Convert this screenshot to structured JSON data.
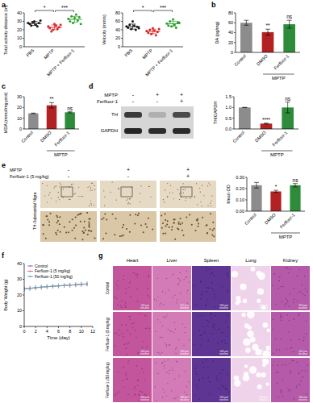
{
  "panel_labels": [
    "a",
    "b",
    "c",
    "d",
    "e",
    "f",
    "g"
  ],
  "chart_data": [
    {
      "type": "dot",
      "y_label": "Total activity distance (m)",
      "categories": [
        "PBS",
        "MPTP",
        "MPTP + Ferfluor-1"
      ],
      "colors": [
        "#1a1a1a",
        "#d62728",
        "#2ca02c"
      ],
      "points": [
        [
          28,
          27,
          25,
          29,
          30,
          26,
          24,
          28,
          31
        ],
        [
          24,
          22,
          18,
          20,
          27,
          25,
          21,
          23,
          26
        ],
        [
          33,
          30,
          36,
          28,
          34,
          38,
          31,
          35,
          27
        ]
      ],
      "means": [
        27.5,
        22.9,
        32.4
      ],
      "errors": [
        2.3,
        2.8,
        3.5
      ],
      "ylim": [
        0,
        40
      ],
      "yticks": [
        0,
        10,
        20,
        30,
        40
      ],
      "annotations": [
        {
          "from": "PBS",
          "to": "MPTP",
          "text": "*"
        },
        {
          "from": "MPTP",
          "to": "MPTP + Ferfluor-1",
          "text": "***"
        }
      ]
    },
    {
      "type": "dot",
      "y_label": "Velocity (mm/s)",
      "categories": [
        "PBS",
        "MPTP",
        "MPTP + Ferfluor-1"
      ],
      "colors": [
        "#1a1a1a",
        "#d62728",
        "#2ca02c"
      ],
      "points": [
        [
          48,
          45,
          52,
          42,
          60,
          50,
          40,
          47,
          44
        ],
        [
          37,
          33,
          40,
          30,
          44,
          38,
          27,
          35,
          42
        ],
        [
          55,
          50,
          60,
          48,
          65,
          52,
          45,
          58,
          57
        ]
      ],
      "means": [
        47.6,
        36.2,
        54.4
      ],
      "errors": [
        6,
        5.3,
        6.1
      ],
      "ylim": [
        0,
        80
      ],
      "yticks": [
        0,
        20,
        40,
        60,
        80
      ],
      "annotations": [
        {
          "from": "PBS",
          "to": "MPTP",
          "text": "*"
        },
        {
          "from": "MPTP",
          "to": "MPTP + Ferfluor-1",
          "text": "***"
        }
      ]
    },
    {
      "type": "bar",
      "y_label": "DA (pg/mg)",
      "categories": [
        "Control",
        "DMSO",
        "Ferfluor-1"
      ],
      "colors": [
        "#8c8c8c",
        "#b22222",
        "#2e8b3a"
      ],
      "values": [
        60,
        41,
        57
      ],
      "errors": [
        5,
        6,
        8
      ],
      "ylim": [
        0,
        80
      ],
      "yticks": [
        0,
        20,
        40,
        60,
        80
      ],
      "annotations": [
        {
          "at": "DMSO",
          "text": "**"
        },
        {
          "at": "Ferfluor-1",
          "text": "ns"
        }
      ],
      "group_label": {
        "text": "MPTP",
        "from": "DMSO",
        "to": "Ferfluor-1"
      }
    },
    {
      "type": "bar",
      "y_label": "MDA (mmol/mg prot)",
      "categories": [
        "Control",
        "DMSO",
        "Ferfluor-1"
      ],
      "colors": [
        "#8c8c8c",
        "#b22222",
        "#2e8b3a"
      ],
      "values": [
        14.5,
        22,
        15.5
      ],
      "errors": [
        0.3,
        2.5,
        0.5
      ],
      "ylim": [
        0,
        30
      ],
      "yticks": [
        0,
        10,
        20,
        30
      ],
      "annotations": [
        {
          "at": "DMSO",
          "text": "**"
        },
        {
          "at": "Ferfluor-1",
          "text": "ns"
        }
      ],
      "group_label": {
        "text": "MPTP",
        "from": "DMSO",
        "to": "Ferfluor-1"
      }
    },
    {
      "type": "bar",
      "y_label": "TH/GAPDH",
      "categories": [
        "Control",
        "DMSO",
        "Ferfluor-1"
      ],
      "colors": [
        "#8c8c8c",
        "#b22222",
        "#2e8b3a"
      ],
      "values": [
        1.0,
        0.25,
        1.0
      ],
      "errors": [
        0,
        0.02,
        0.25
      ],
      "ylim": [
        0,
        1.5
      ],
      "yticks": [
        {
          "value": 0,
          "label": "0.0"
        },
        0.5,
        {
          "value": 1,
          "label": "1.0"
        },
        1.5
      ],
      "annotations": [
        {
          "at": "DMSO",
          "text": "****"
        },
        {
          "at": "Ferfluor-1",
          "text": "ns"
        }
      ],
      "group_label": {
        "text": "MPTP",
        "from": "DMSO",
        "to": "Ferfluor-1"
      }
    },
    {
      "type": "bar",
      "y_label": "Mean OD",
      "categories": [
        "Control",
        "DMSO",
        "Ferfluor-1"
      ],
      "colors": [
        "#8c8c8c",
        "#b22222",
        "#2e8b3a"
      ],
      "values": [
        0.23,
        0.175,
        0.23
      ],
      "errors": [
        0.025,
        0.01,
        0.015
      ],
      "ylim": [
        0,
        0.3
      ],
      "yticks": [
        {
          "value": 0,
          "label": "0.00"
        },
        {
          "value": 0.1,
          "label": "0.10"
        },
        {
          "value": 0.2,
          "label": "0.20"
        },
        {
          "value": 0.3,
          "label": "0.30"
        }
      ],
      "annotations": [
        {
          "at": "DMSO",
          "text": "*"
        },
        {
          "at": "Ferfluor-1",
          "text": "ns"
        }
      ],
      "group_label": {
        "text": "MPTP",
        "from": "DMSO",
        "to": "Ferfluor-1"
      }
    },
    {
      "type": "line",
      "x_label": "Time (day)",
      "y_label": "Body Weight (g)",
      "x": [
        0,
        1,
        2,
        3,
        4,
        5,
        6,
        7,
        8,
        9,
        10,
        11
      ],
      "xlim": [
        0,
        12
      ],
      "xticks": [
        0,
        2,
        4,
        6,
        8,
        10,
        12
      ],
      "ylim": [
        0,
        40
      ],
      "yticks": [
        0,
        10,
        20,
        30,
        40
      ],
      "legend": "upper left",
      "series": [
        {
          "name": "Control",
          "color": "#9575cd",
          "values": [
            24.0,
            24.3,
            24.8,
            25.1,
            25.4,
            25.6,
            25.9,
            26.1,
            26.3,
            26.6,
            26.8,
            27.0
          ],
          "errors": [
            1.5,
            1.5,
            1.5,
            1.5,
            1.5,
            1.5,
            1.5,
            1.5,
            1.5,
            1.5,
            1.5,
            1.5
          ]
        },
        {
          "name": "Ferfluor-1 (5 mg/kg)",
          "color": "#f06292",
          "values": [
            23.8,
            24.1,
            24.5,
            24.9,
            25.2,
            25.5,
            25.7,
            26.0,
            26.2,
            26.4,
            26.7,
            26.9
          ],
          "errors": [
            1.5,
            1.5,
            1.5,
            1.5,
            1.5,
            1.5,
            1.5,
            1.5,
            1.5,
            1.5,
            1.5,
            1.5
          ]
        },
        {
          "name": "Ferfluor-1 (50 mg/kg)",
          "color": "#4db6ac",
          "values": [
            23.9,
            24.2,
            24.6,
            25.0,
            25.3,
            25.5,
            25.8,
            26.0,
            26.3,
            26.5,
            26.9,
            27.1
          ],
          "errors": [
            1.5,
            1.5,
            1.5,
            1.5,
            1.5,
            1.5,
            1.5,
            1.5,
            1.5,
            1.5,
            1.5,
            1.5
          ]
        }
      ]
    }
  ],
  "blot": {
    "rows": [
      {
        "label": "MPTP",
        "signs": [
          "-",
          "+",
          "+"
        ]
      },
      {
        "label": "Ferfluor-1",
        "signs": [
          "-",
          "-",
          "+"
        ]
      }
    ],
    "bands": [
      "TH",
      "GAPDH"
    ]
  },
  "ihc": {
    "rows": [
      {
        "label": "MPTP",
        "signs": [
          "-",
          "+",
          "+"
        ]
      },
      {
        "label": "Ferfluor-1 (5 mg/kg)",
        "signs": [
          "-",
          "-",
          "+"
        ]
      }
    ],
    "side_label": "TH-Substantial Nigra"
  },
  "histology": {
    "columns": [
      "Heart",
      "Liver",
      "Spleen",
      "Lung",
      "Kidney"
    ],
    "rows": [
      "Control",
      "Ferfluor-1 (5 mg/kg)",
      "Ferfluor-1 (50 mg/kg)"
    ],
    "scale_bar": "100 μm"
  }
}
